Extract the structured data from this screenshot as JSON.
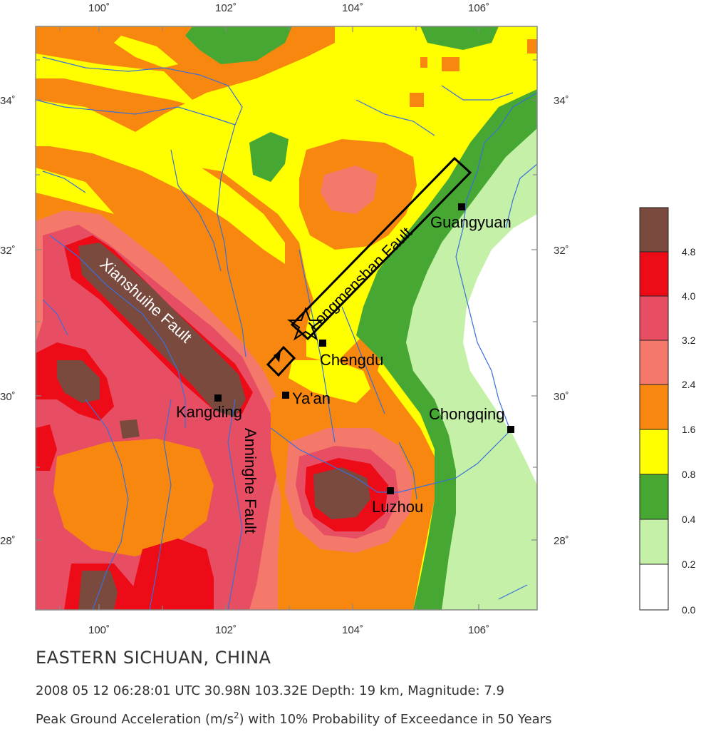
{
  "title": "EASTERN SICHUAN, CHINA",
  "event_line": "2008 05 12 06:28:01 UTC 30.98N 103.32E Depth: 19 km, Magnitude: 7.9",
  "description": {
    "prefix": "Peak Ground Acceleration (m/s",
    "superscript": "2",
    "suffix": ") with 10% Probability of Exceedance in 50 Years"
  },
  "map": {
    "lon_labels": [
      "100˚",
      "102˚",
      "104˚",
      "106˚"
    ],
    "lat_labels": [
      "34˚",
      "32˚",
      "30˚",
      "28˚"
    ],
    "cities": [
      "Guangyuan",
      "Chengdu",
      "Ya'an",
      "Kangding",
      "Chongqing",
      "Luzhou"
    ],
    "faults": [
      "Longmenshan Fault",
      "Xianshuihe Fault",
      "Anninghe Fault"
    ]
  },
  "legend": {
    "ticks": [
      "4.8",
      "4.0",
      "3.2",
      "2.4",
      "1.6",
      "0.8",
      "0.4",
      "0.2",
      "0.0"
    ],
    "colors": [
      "#7b4a3f",
      "#ec0b16",
      "#e84e63",
      "#f4796b",
      "#f7870f",
      "#ffff00",
      "#46a832",
      "#c5f0a8",
      "#ffffff"
    ]
  }
}
